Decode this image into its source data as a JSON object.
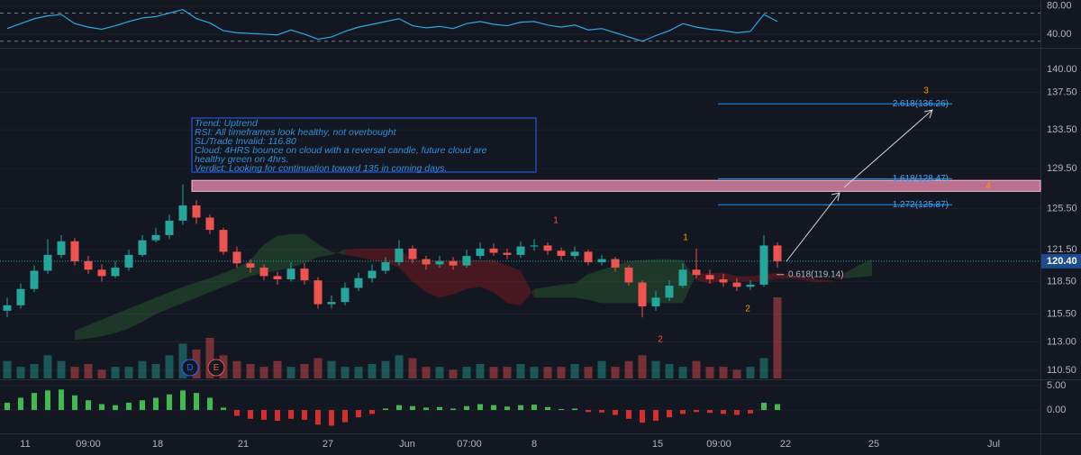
{
  "chart_data": [
    {
      "type": "line",
      "color": "#2aa9e0",
      "values": [
        48,
        55,
        62,
        66,
        68,
        55,
        50,
        47,
        52,
        58,
        63,
        65,
        70,
        75,
        62,
        56,
        45,
        42,
        41,
        40,
        39,
        46,
        40,
        33,
        36,
        44,
        50,
        54,
        58,
        62,
        52,
        49,
        51,
        48,
        55,
        58,
        54,
        52,
        57,
        58,
        53,
        50,
        53,
        46,
        48,
        42,
        36,
        30,
        38,
        45,
        55,
        50,
        47,
        45,
        42,
        44,
        68,
        58
      ],
      "ylim": [
        22,
        86
      ],
      "yticks": [
        {
          "value": 80,
          "label": "80.00"
        },
        {
          "value": 40,
          "label": "40.00"
        }
      ],
      "levels": [
        70,
        30
      ]
    },
    {
      "type": "candlestick",
      "up_color": "#26a69a",
      "down_color": "#ef5350",
      "log_scale": true,
      "open": [
        115.8,
        116.3,
        117.8,
        119.5,
        121.0,
        122.3,
        120.4,
        119.6,
        119.0,
        119.8,
        121.0,
        122.4,
        122.9,
        124.3,
        125.8,
        124.6,
        123.4,
        121.3,
        120.2,
        119.8,
        119.0,
        118.7,
        119.7,
        118.6,
        116.4,
        116.6,
        117.9,
        118.8,
        119.5,
        120.3,
        121.6,
        120.6,
        120.1,
        120.4,
        120.0,
        120.9,
        121.6,
        121.2,
        121.0,
        121.8,
        121.9,
        121.4,
        120.9,
        121.3,
        120.3,
        120.6,
        119.8,
        118.4,
        116.2,
        117.0,
        118.1,
        119.6,
        119.1,
        118.7,
        118.4,
        118.0,
        118.2,
        121.9
      ],
      "high": [
        117.0,
        118.3,
        120.0,
        122.5,
        122.9,
        122.6,
        120.9,
        120.1,
        120.4,
        121.5,
        122.9,
        123.6,
        124.9,
        127.9,
        126.3,
        124.9,
        123.6,
        121.8,
        120.6,
        120.1,
        119.4,
        120.3,
        120.2,
        118.9,
        117.2,
        118.4,
        119.3,
        120.1,
        120.8,
        122.4,
        121.9,
        120.9,
        120.9,
        120.8,
        121.5,
        122.2,
        122.1,
        121.6,
        122.3,
        122.5,
        122.2,
        121.7,
        121.8,
        121.5,
        121.0,
        120.8,
        120.0,
        118.6,
        117.6,
        118.6,
        120.2,
        121.6,
        119.6,
        119.2,
        118.8,
        118.6,
        122.9,
        122.2
      ],
      "low": [
        115.2,
        116.0,
        117.5,
        119.2,
        120.7,
        120.0,
        119.2,
        118.5,
        118.8,
        119.5,
        120.8,
        122.2,
        122.5,
        123.9,
        124.0,
        123.0,
        121.0,
        119.8,
        119.3,
        118.6,
        118.2,
        118.5,
        118.2,
        116.0,
        116.0,
        116.3,
        117.6,
        118.4,
        119.2,
        120.0,
        120.2,
        119.6,
        119.8,
        119.6,
        119.8,
        120.6,
        120.9,
        120.6,
        120.7,
        121.4,
        121.0,
        120.5,
        120.6,
        120.0,
        120.0,
        119.4,
        118.1,
        115.2,
        115.8,
        116.7,
        117.9,
        118.8,
        118.3,
        118.0,
        117.6,
        117.7,
        118.0,
        119.8
      ],
      "close": [
        116.3,
        117.8,
        119.5,
        121.0,
        122.3,
        120.4,
        119.6,
        119.0,
        119.8,
        121.0,
        122.4,
        122.9,
        124.3,
        125.8,
        124.6,
        123.4,
        121.3,
        120.2,
        119.8,
        119.0,
        118.7,
        119.7,
        118.6,
        116.4,
        116.6,
        117.9,
        118.8,
        119.5,
        120.3,
        121.6,
        120.6,
        120.1,
        120.4,
        120.0,
        120.9,
        121.6,
        121.2,
        121.0,
        121.8,
        121.9,
        121.4,
        120.9,
        121.3,
        120.3,
        120.6,
        119.8,
        118.4,
        116.2,
        117.0,
        118.1,
        119.6,
        119.1,
        118.7,
        118.4,
        118.0,
        118.2,
        121.9,
        120.4
      ],
      "volume": [
        3,
        2,
        2.5,
        4,
        3,
        2,
        2.5,
        1.5,
        2,
        2,
        3,
        2.5,
        4,
        6,
        5,
        7,
        4,
        3,
        2.5,
        2,
        3,
        2,
        2.5,
        3.5,
        3,
        2,
        2,
        2.5,
        3,
        4,
        3.5,
        2,
        2,
        1.5,
        2,
        2.5,
        2,
        2,
        2.5,
        2,
        2,
        2,
        2.5,
        2,
        3,
        2,
        3,
        4,
        3,
        2.5,
        2,
        3,
        2,
        2,
        1.5,
        2,
        3.5,
        14
      ],
      "cloud": {
        "up_color": "rgba(56,142,60,0.28)",
        "down_color": "rgba(183,28,28,0.32)",
        "span_a": [
          null,
          null,
          null,
          null,
          null,
          114.0,
          114.5,
          115.0,
          115.5,
          116.0,
          116.5,
          117.0,
          117.5,
          118.0,
          118.4,
          118.8,
          119.3,
          119.8,
          120.5,
          122.0,
          122.8,
          123.0,
          123.0,
          122.0,
          121.3,
          121.0,
          120.8,
          120.5,
          120.3,
          119.8,
          118.5,
          117.5,
          117.0,
          117.3,
          117.8,
          118.0,
          117.5,
          116.5,
          116.3,
          117.8,
          118.0,
          118.2,
          118.3,
          119.2,
          119.6,
          120.0,
          120.4,
          120.5,
          120.6,
          120.6,
          120.5,
          118.6,
          118.3,
          118.6,
          118.5,
          118.5,
          118.5,
          118.7,
          118.8,
          118.6,
          118.4,
          118.5,
          119.3,
          120.0,
          120.6
        ],
        "span_b": [
          null,
          null,
          null,
          null,
          null,
          113.2,
          113.3,
          113.5,
          113.8,
          114.2,
          114.8,
          115.5,
          116.0,
          116.5,
          117.0,
          117.5,
          118.0,
          118.5,
          119.0,
          119.3,
          119.5,
          119.8,
          120.2,
          120.8,
          121.0,
          121.5,
          121.6,
          121.6,
          121.6,
          121.6,
          120.5,
          120.5,
          120.5,
          120.5,
          120.5,
          120.5,
          120.5,
          120.0,
          119.5,
          117.0,
          117.0,
          117.0,
          117.0,
          116.8,
          116.5,
          116.5,
          116.5,
          116.5,
          116.5,
          116.5,
          116.5,
          119.2,
          119.3,
          119.3,
          119.0,
          119.0,
          119.2,
          119.3,
          119.1,
          118.9,
          118.7,
          118.6,
          118.8,
          118.9,
          119.0
        ]
      },
      "ylim": [
        109.8,
        142.1
      ],
      "yticks": [
        {
          "value": 140,
          "label": "140.00"
        },
        {
          "value": 137.5,
          "label": "137.50"
        },
        {
          "value": 133.5,
          "label": "133.50"
        },
        {
          "value": 129.5,
          "label": "129.50"
        },
        {
          "value": 125.5,
          "label": "125.50"
        },
        {
          "value": 121.5,
          "label": "121.50"
        },
        {
          "value": 118.5,
          "label": "118.50"
        },
        {
          "value": 115.5,
          "label": "115.50"
        },
        {
          "value": 113,
          "label": "113.00"
        },
        {
          "value": 110.5,
          "label": "110.50"
        }
      ],
      "current_price": {
        "value": 120.4,
        "label": "120.40"
      },
      "zone": [
        127.2,
        128.3
      ],
      "fib_levels": [
        {
          "value": 136.26,
          "label": "2.618(136.26)"
        },
        {
          "value": 128.47,
          "label": "1.618(128.47)"
        },
        {
          "value": 125.87,
          "label": "1.272(125.87)"
        },
        {
          "value": 119.14,
          "label": "0.618(119.14)"
        }
      ],
      "note": [
        "Trend: Uptrend",
        "RSI: All timeframes look healthy, not overbought",
        "SL/Trade Invalid: 116.80",
        "Cloud: 4HRS bounce on cloud with a reversal candle, future cloud are",
        "healthy green on 4hrs.",
        "Verdict: Looking for continuation toward 135 in coming days."
      ],
      "annotations": [
        {
          "text": "3",
          "color": "#ff9800"
        },
        {
          "text": "4",
          "color": "#ff9800"
        },
        {
          "text": "1",
          "color": "#ef5350"
        },
        {
          "text": "1",
          "color": "#ff9800"
        },
        {
          "text": "2",
          "color": "#ef5350"
        },
        {
          "text": "2",
          "color": "#ff9800"
        }
      ],
      "events": [
        {
          "text": "D",
          "color": "#2962ff"
        },
        {
          "text": "E",
          "color": "#ef5350"
        }
      ],
      "x_labels": [
        "11",
        "09:00",
        "18",
        "21",
        "27",
        "Jun",
        "07:00",
        "8",
        "15",
        "09:00",
        "22",
        "25",
        "Jul"
      ]
    },
    {
      "type": "bar",
      "up_color": "#3fb950",
      "down_color": "#d32f2f",
      "values": [
        1.5,
        2.5,
        3.5,
        4,
        4.2,
        3,
        2,
        1.2,
        1,
        1.5,
        2,
        2.5,
        3.2,
        4,
        3.5,
        2.5,
        0.5,
        -1.2,
        -1.8,
        -2,
        -2.2,
        -1.8,
        -2,
        -3,
        -3.2,
        -2.5,
        -1.5,
        -0.8,
        0.3,
        1,
        0.8,
        0.5,
        0.6,
        0.3,
        0.8,
        1.2,
        1,
        0.7,
        1,
        1.1,
        0.6,
        0.2,
        0.3,
        -0.4,
        -0.5,
        -1,
        -1.8,
        -2.6,
        -2.2,
        -1.5,
        -0.8,
        -0.4,
        -0.6,
        -0.8,
        -1,
        -0.7,
        1.5,
        1.2
      ],
      "ylim": [
        -4.6,
        6.1
      ],
      "yticks": [
        {
          "value": 5,
          "label": "5.00"
        },
        {
          "value": 0,
          "label": "0.00"
        }
      ]
    }
  ]
}
